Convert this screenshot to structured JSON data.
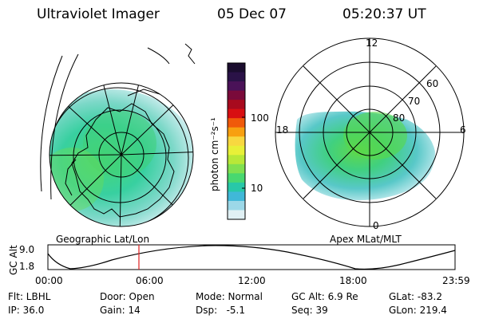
{
  "header": {
    "instrument": "Ultraviolet Imager",
    "date": "05 Dec 07",
    "time": "05:20:37 UT"
  },
  "colorbar": {
    "ticks": [
      "100",
      "10"
    ],
    "unit_label": "photon cm⁻²s⁻¹",
    "colors": [
      "#1a0d2e",
      "#2a1247",
      "#4a1258",
      "#7a0a3a",
      "#a80a1e",
      "#d80f12",
      "#f05a0a",
      "#f8a010",
      "#f8d840",
      "#e8f038",
      "#b8e838",
      "#80e050",
      "#48d870",
      "#28c8a8",
      "#40b8d8",
      "#9cd8e8",
      "#e0f0f4"
    ]
  },
  "left_map": {
    "label": "Geographic Lat/Lon"
  },
  "right_map": {
    "label": "Apex MLat/MLT",
    "mlt_labels": {
      "top": "12",
      "left": "18",
      "right": "6",
      "bottom": "0"
    },
    "lat_labels": [
      "60",
      "70",
      "80"
    ]
  },
  "altitude_plot": {
    "ylabel": "GC Alt",
    "yticks": [
      "9.0",
      "1.8"
    ],
    "xticks": [
      "00:00",
      "06:00",
      "12:00",
      "18:00",
      "23:59"
    ],
    "curve_color": "#000000",
    "marker_color": "#e02020"
  },
  "info": {
    "row1": [
      {
        "label": "Flt: LBHL"
      },
      {
        "label": "Door: Open"
      },
      {
        "label": "Mode: Normal"
      },
      {
        "label": "GC Alt: 6.9 Re"
      },
      {
        "label": "GLat: -83.2"
      }
    ],
    "row2": [
      {
        "label": "IP: 36.0"
      },
      {
        "label": "Gain: 14"
      },
      {
        "label": "Dsp:   -5.1"
      },
      {
        "label": "Seq: 39"
      },
      {
        "label": "GLon: 219.4"
      }
    ]
  }
}
